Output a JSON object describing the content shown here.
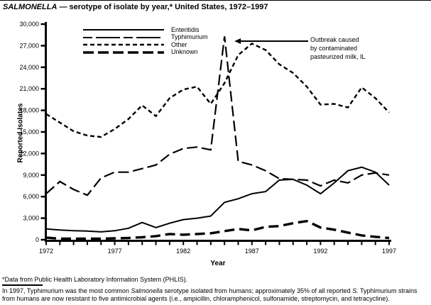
{
  "title": {
    "italic_part": "SALMONELLA",
    "rest_part": " — serotype of isolate by year,* United States, 1972–1997"
  },
  "annotation_text": "Outbreak caused\nby contaminated\npasteurized milk, IL",
  "footnotes": {
    "f1": "*Data from Public Health Laboratory Information System (PHLIS).",
    "f2_p1": "In 1997, Typhimurium was the most common ",
    "f2_i1": "Salmonella",
    "f2_p2": " serotype isolated from humans; approximately 35% of all reported ",
    "f2_i2": "S.",
    "f2_p3": " Typhimurium strains from humans are now resistant to five antimicrobial agents (i.e., ampicillin, chloramphenicol, sulfonamide, streptomycin, and tetracycline)."
  },
  "chart_data": {
    "type": "line",
    "title": "SALMONELLA — serotype of isolate by year,* United States, 1972–1997",
    "xlabel": "Year",
    "ylabel": "Reported Isolates",
    "xlim": [
      1972,
      1997
    ],
    "ylim": [
      0,
      30000
    ],
    "grid": false,
    "legend_position": "top-left-inside",
    "x": [
      1972,
      1973,
      1974,
      1975,
      1976,
      1977,
      1978,
      1979,
      1980,
      1981,
      1982,
      1983,
      1984,
      1985,
      1986,
      1987,
      1988,
      1989,
      1990,
      1991,
      1992,
      1993,
      1994,
      1995,
      1996,
      1997
    ],
    "x_tick_years": [
      1972,
      1977,
      1982,
      1987,
      1992,
      1997
    ],
    "x_tick_labels": [
      "1972",
      "1977",
      "1982",
      "1987",
      "1992",
      "1997"
    ],
    "y_ticks": [
      0,
      3000,
      6000,
      9000,
      12000,
      15000,
      18000,
      21000,
      24000,
      27000,
      30000
    ],
    "y_tick_labels": [
      "0",
      "3,000",
      "6,000",
      "9,000",
      "12,000",
      "15,000",
      "18,000",
      "21,000",
      "24,000",
      "27,000",
      "30,000"
    ],
    "series": [
      {
        "name": "Enteritidis",
        "style": "solid",
        "values": [
          1500,
          1350,
          1250,
          1200,
          1100,
          1250,
          1600,
          2400,
          1700,
          2300,
          2800,
          3000,
          3300,
          5200,
          5700,
          6400,
          6700,
          8300,
          8400,
          7600,
          6400,
          7900,
          9600,
          10100,
          9400,
          7600
        ]
      },
      {
        "name": "Typhimurium",
        "style": "long-dash",
        "values": [
          6400,
          8100,
          7000,
          6200,
          8600,
          9400,
          9400,
          9900,
          10400,
          11900,
          12700,
          12900,
          12500,
          28300,
          10900,
          10400,
          9600,
          8500,
          8400,
          8300,
          7500,
          8300,
          7900,
          9000,
          9300,
          9000
        ]
      },
      {
        "name": "Other",
        "style": "short-dash",
        "values": [
          17500,
          16300,
          15100,
          14500,
          14300,
          15400,
          16800,
          18700,
          17200,
          19700,
          20900,
          21300,
          18900,
          21800,
          25700,
          27300,
          26400,
          24400,
          23200,
          21300,
          18800,
          18900,
          18400,
          21200,
          19700,
          17700
        ]
      },
      {
        "name": "Unknown",
        "style": "thick-dash",
        "values": [
          300,
          150,
          150,
          150,
          150,
          200,
          250,
          350,
          500,
          800,
          700,
          800,
          900,
          1200,
          1500,
          1300,
          1800,
          1900,
          2300,
          2600,
          1700,
          1400,
          1000,
          600,
          400,
          250
        ]
      }
    ],
    "annotation": {
      "text": "Outbreak caused by contaminated pasteurized milk, IL",
      "arrow_points_to": {
        "year": 1985,
        "value": 28300
      }
    },
    "colors": {
      "line": "#000000",
      "background": "#ffffff"
    }
  }
}
